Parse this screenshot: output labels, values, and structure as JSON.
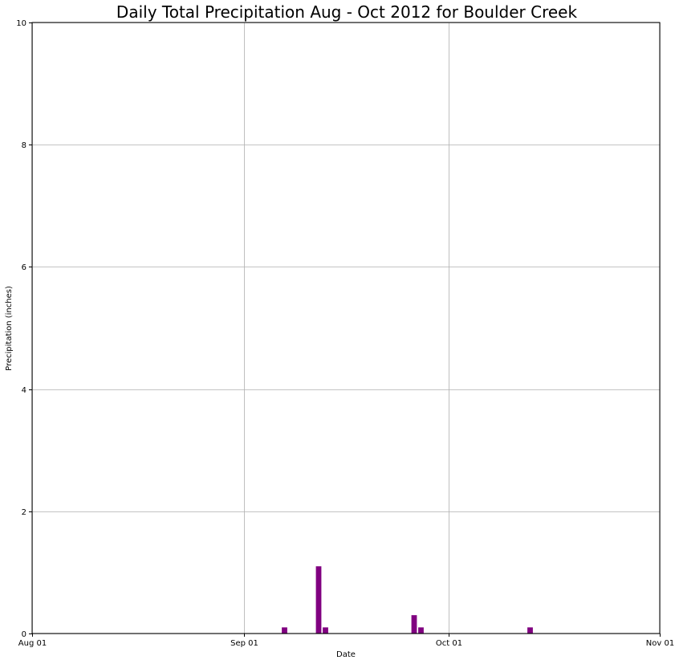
{
  "chart_data": {
    "type": "bar",
    "title": "Daily Total Precipitation Aug - Oct 2012 for Boulder Creek",
    "xlabel": "Date",
    "ylabel": "Precipitation (inches)",
    "x_range": [
      "2012-08-01",
      "2012-11-01"
    ],
    "ylim": [
      0,
      10
    ],
    "grid": true,
    "bar_color": "#800080",
    "x_ticks": [
      {
        "date": "2012-08-01",
        "label": "Aug 01"
      },
      {
        "date": "2012-09-01",
        "label": "Sep 01"
      },
      {
        "date": "2012-10-01",
        "label": "Oct 01"
      },
      {
        "date": "2012-11-01",
        "label": "Nov 01"
      }
    ],
    "y_ticks": [
      0,
      2,
      4,
      6,
      8,
      10
    ],
    "points": [
      {
        "date": "2012-09-07",
        "value": 0.1
      },
      {
        "date": "2012-09-12",
        "value": 1.1
      },
      {
        "date": "2012-09-13",
        "value": 0.1
      },
      {
        "date": "2012-09-26",
        "value": 0.3
      },
      {
        "date": "2012-09-27",
        "value": 0.1
      },
      {
        "date": "2012-10-13",
        "value": 0.1
      }
    ]
  }
}
